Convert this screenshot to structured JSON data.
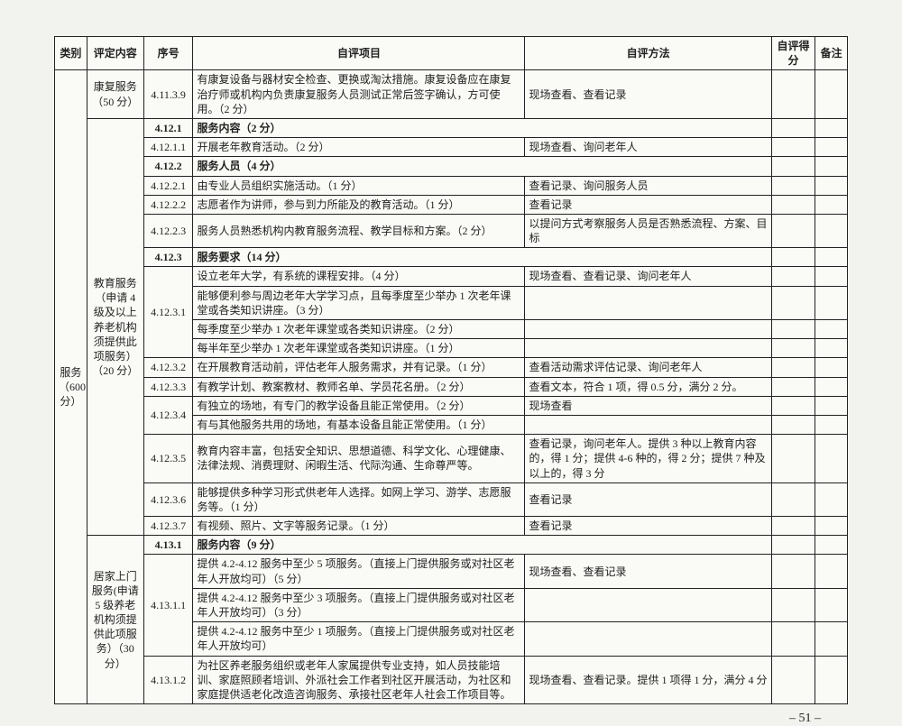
{
  "header": {
    "category": "类别",
    "evalContent": "评定内容",
    "index": "序号",
    "selfItem": "自评项目",
    "method": "自评方法",
    "score": "自评得分",
    "note": "备注"
  },
  "left": {
    "category": "服务（600 分）"
  },
  "groups": {
    "kangfu": {
      "label": "康复服务（50 分）"
    },
    "jiaoyu": {
      "label": "教育服务（申请 4 级及以上养老机构须提供此项服务）（20 分）"
    },
    "jujia": {
      "label": "居家上门服务(申请 5 级养老机构须提供此项服务）（30 分）"
    }
  },
  "rows": {
    "r41139": {
      "idx": "4.11.3.9",
      "item": "有康复设备与器材安全检查、更换或淘汰措施。康复设备应在康复治疗师或机构内负责康复服务人员测试正常后签字确认，方可使用。（2 分）",
      "method": "现场查看、查看记录"
    },
    "r4121h": {
      "idx": "4.12.1",
      "item": "服务内容（2 分）"
    },
    "r41211": {
      "idx": "4.12.1.1",
      "item": "开展老年教育活动。（2 分）",
      "method": "现场查看、询问老年人"
    },
    "r4122h": {
      "idx": "4.12.2",
      "item": "服务人员（4 分）"
    },
    "r41221": {
      "idx": "4.12.2.1",
      "item": "由专业人员组织实施活动。（1 分）",
      "method": "查看记录、询问服务人员"
    },
    "r41222": {
      "idx": "4.12.2.2",
      "item": "志愿者作为讲师，参与到力所能及的教育活动。（1 分）",
      "method": "查看记录"
    },
    "r41223": {
      "idx": "4.12.2.3",
      "item": "服务人员熟悉机构内教育服务流程、教学目标和方案。（2 分）",
      "method": "以提问方式考察服务人员是否熟悉流程、方案、目标"
    },
    "r4123h": {
      "idx": "4.12.3",
      "item": "服务要求（14 分）"
    },
    "r41231a": {
      "idx": "4.12.3.1",
      "item": "设立老年大学，有系统的课程安排。（4 分）",
      "method": "现场查看、查看记录、询问老年人"
    },
    "r41231b": {
      "item": "能够便利参与周边老年大学学习点，且每季度至少举办 1 次老年课堂或各类知识讲座。（3 分）"
    },
    "r41231c": {
      "item": "每季度至少举办 1 次老年课堂或各类知识讲座。（2 分）"
    },
    "r41231d": {
      "item": "每半年至少举办 1 次老年课堂或各类知识讲座。（1 分）"
    },
    "r41232": {
      "idx": "4.12.3.2",
      "item": "在开展教育活动前，评估老年人服务需求，并有记录。（1 分）",
      "method": "查看活动需求评估记录、询问老年人"
    },
    "r41233": {
      "idx": "4.12.3.3",
      "item": "有教学计划、教案教材、教师名单、学员花名册。（2 分）",
      "method": "查看文本，符合 1 项，得 0.5 分，满分 2 分。"
    },
    "r41234a": {
      "idx": "4.12.3.4",
      "item": "有独立的场地，有专门的教学设备且能正常使用。（2 分）",
      "method": "现场查看"
    },
    "r41234b": {
      "item": "有与其他服务共用的场地，有基本设备且能正常使用。（1 分）"
    },
    "r41235": {
      "idx": "4.12.3.5",
      "item": "教育内容丰富，包括安全知识、思想道德、科学文化、心理健康、法律法规、消费理财、闲暇生活、代际沟通、生命尊严等。",
      "method": "查看记录，询问老年人。提供 3 种以上教育内容的，得 1 分；提供 4-6 种的，得 2 分；提供 7 种及以上的，得 3 分"
    },
    "r41236": {
      "idx": "4.12.3.6",
      "item": "能够提供多种学习形式供老年人选择。如网上学习、游学、志愿服务等。（1 分）",
      "method": "查看记录"
    },
    "r41237": {
      "idx": "4.12.3.7",
      "item": "有视频、照片、文字等服务记录。（1 分）",
      "method": "查看记录"
    },
    "r4131h": {
      "idx": "4.13.1",
      "item": "服务内容（9 分）"
    },
    "r41311a": {
      "idx": "4.13.1.1",
      "item": "提供 4.2-4.12 服务中至少 5 项服务。（直接上门提供服务或对社区老年人开放均可）（5 分）",
      "method": "现场查看、查看记录"
    },
    "r41311b": {
      "item": "提供 4.2-4.12 服务中至少 3 项服务。（直接上门提供服务或对社区老年人开放均可）（3 分）"
    },
    "r41311c": {
      "item": "提供 4.2-4.12 服务中至少 1 项服务。（直接上门提供服务或对社区老年人开放均可）"
    },
    "r41312": {
      "idx": "4.13.1.2",
      "item": "为社区养老服务组织或老年人家属提供专业支持，如人员技能培训、家庭照顾者培训、外派社会工作者到社区开展活动，为社区和家庭提供适老化改造咨询服务、承接社区老年人社会工作项目等。",
      "method": "现场查看、查看记录。提供 1 项得 1 分，满分 4 分"
    }
  },
  "pagenum": "– 51 –"
}
